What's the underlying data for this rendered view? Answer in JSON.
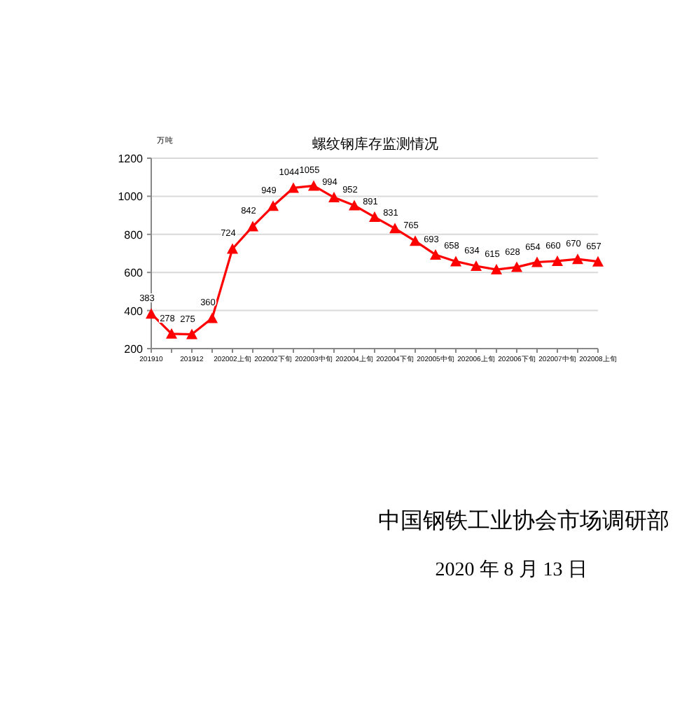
{
  "chart_data": {
    "type": "line",
    "title": "螺纹钢库存监测情况",
    "ylabel": "万吨",
    "categories": [
      "201910",
      null,
      "201912",
      null,
      "202002上旬",
      null,
      "202002下旬",
      null,
      "202003中旬",
      null,
      "202004上旬",
      null,
      "202004下旬",
      null,
      "202005中旬",
      null,
      "202006上旬",
      null,
      "202006下旬",
      null,
      "202007中旬",
      null,
      "202008上旬"
    ],
    "series": [
      {
        "color": "#ff0000",
        "values": [
          383,
          278,
          275,
          360,
          724,
          842,
          949,
          1044,
          1055,
          994,
          952,
          891,
          831,
          765,
          693,
          658,
          634,
          615,
          628,
          654,
          660,
          670,
          657
        ]
      }
    ],
    "ylim": [
      200,
      1200
    ],
    "yticks": [
      200,
      400,
      600,
      800,
      1000,
      1200
    ],
    "grid": "y",
    "marker": "triangle",
    "line_style": "solid",
    "data_labels": true,
    "annotations": [
      "中国钢铁工业协会市场调研部",
      "2020 年 8 月 13 日"
    ]
  }
}
